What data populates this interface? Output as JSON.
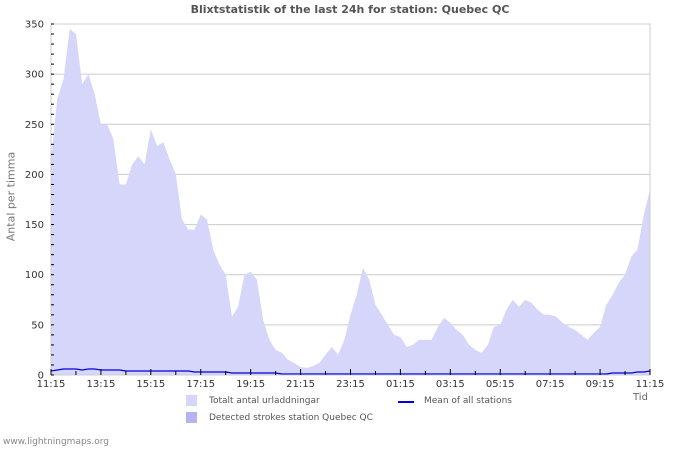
{
  "chart_data": {
    "type": "area",
    "title": "Blixtstatistik of the last 24h for station: Quebec QC",
    "xlabel": "Tid",
    "ylabel": "Antal per timma",
    "ylim": [
      0,
      350
    ],
    "yticks": [
      0,
      50,
      100,
      150,
      200,
      250,
      300,
      350
    ],
    "xticks": [
      "11:15",
      "13:15",
      "15:15",
      "17:15",
      "19:15",
      "21:15",
      "23:15",
      "01:15",
      "03:15",
      "05:15",
      "07:15",
      "09:15",
      "11:15"
    ],
    "grid": true,
    "interval_minutes": 15,
    "series": [
      {
        "name": "Totalt antal urladdningar",
        "type": "area",
        "color": "#d6d6fa",
        "values": [
          215,
          275,
          295,
          345,
          340,
          290,
          300,
          280,
          250,
          250,
          235,
          190,
          190,
          210,
          218,
          210,
          245,
          228,
          232,
          215,
          200,
          155,
          145,
          145,
          160,
          155,
          125,
          110,
          100,
          58,
          68,
          100,
          103,
          95,
          55,
          35,
          25,
          22,
          15,
          12,
          8,
          7,
          9,
          12,
          20,
          28,
          20,
          35,
          60,
          80,
          107,
          95,
          70,
          60,
          50,
          40,
          38,
          28,
          30,
          35,
          35,
          35,
          48,
          57,
          52,
          45,
          40,
          30,
          25,
          22,
          30,
          48,
          50,
          65,
          75,
          68,
          75,
          72,
          65,
          60,
          60,
          58,
          52,
          48,
          45,
          40,
          35,
          42,
          48,
          70,
          80,
          92,
          100,
          118,
          125,
          160,
          185
        ]
      },
      {
        "name": "Detected strokes station Quebec QC",
        "type": "area",
        "color": "#b3b3f5",
        "values": [
          0
        ]
      },
      {
        "name": "Mean of all stations",
        "type": "line",
        "color": "#0000dd",
        "values": [
          4,
          5,
          6,
          6,
          6,
          5,
          6,
          6,
          5,
          5,
          5,
          5,
          4,
          4,
          4,
          4,
          4,
          4,
          4,
          4,
          4,
          4,
          4,
          3,
          3,
          3,
          3,
          3,
          3,
          2,
          2,
          2,
          2,
          2,
          2,
          2,
          2,
          1,
          1,
          1,
          1,
          1,
          1,
          1,
          1,
          1,
          1,
          1,
          1,
          1,
          1,
          1,
          1,
          1,
          1,
          1,
          1,
          1,
          1,
          1,
          1,
          1,
          1,
          1,
          1,
          1,
          1,
          1,
          1,
          1,
          1,
          1,
          1,
          1,
          1,
          1,
          1,
          1,
          1,
          1,
          1,
          1,
          1,
          1,
          1,
          1,
          1,
          1,
          1,
          1,
          2,
          2,
          2,
          2,
          3,
          3,
          4
        ]
      }
    ],
    "legend_position": "bottom"
  },
  "header": {
    "title": "Blixtstatistik of the last 24h for station: Quebec QC"
  },
  "axes": {
    "ylabel": "Antal per timma",
    "xlabel": "Tid"
  },
  "legend": {
    "total": "Totalt antal urladdningar",
    "detected": "Detected strokes station Quebec QC",
    "mean": "Mean of all stations"
  },
  "colors": {
    "total": "#d6d6fa",
    "detected": "#b3b3f5",
    "mean": "#0000dd",
    "grid": "#cccccc",
    "frame": "#cccccc"
  },
  "footer": {
    "source": "www.lightningmaps.org"
  }
}
